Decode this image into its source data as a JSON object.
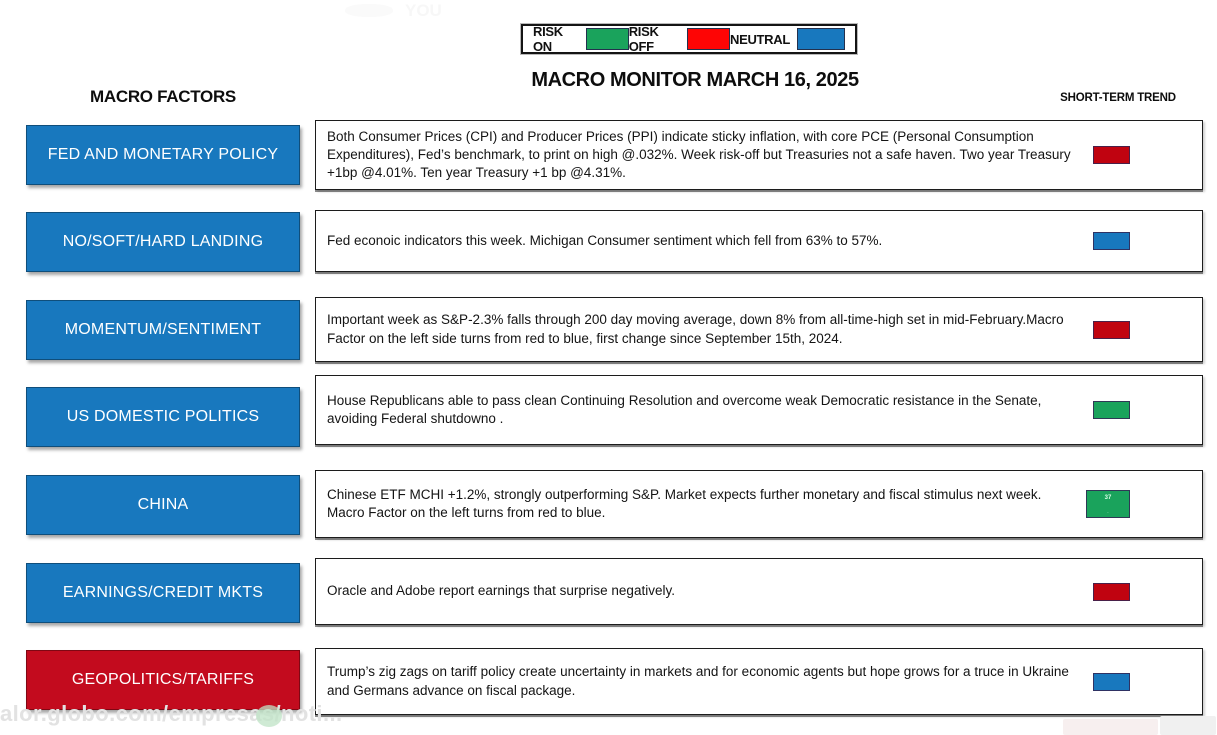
{
  "header": {
    "title": "MACRO MONITOR MARCH 16, 2025",
    "left_column": "MACRO FACTORS",
    "right_column": "SHORT-TERM TREND"
  },
  "legend": {
    "items": [
      {
        "label": "RISK ON",
        "color": "#1aa35c"
      },
      {
        "label": "RISK OFF",
        "color": "#fe0505"
      },
      {
        "label": "NEUTRAL",
        "color": "#1878be"
      }
    ]
  },
  "palette": {
    "factor_blue": "#1878be",
    "factor_red": "#c30b1e",
    "trend_green": "#1aa35c",
    "trend_red": "#c00310",
    "trend_blue": "#1878be"
  },
  "rows": [
    {
      "factor": "FED AND MONETARY POLICY",
      "factor_color": "#1878be",
      "description": "Both Consumer Prices (CPI) and Producer Prices (PPI) indicate sticky inflation, with core PCE (Personal Consumption Expenditures), Fed’s benchmark, to print on high @.032%. Week risk-off but Treasuries not a safe haven. Two year Treasury +1bp @4.01%. Ten year Treasury +1 bp @4.31%.",
      "trend": "risk-off",
      "trend_color": "#c00310"
    },
    {
      "factor": "NO/SOFT/HARD LANDING",
      "factor_color": "#1878be",
      "description": "Fed econoic indicators this week. Michigan Consumer sentiment which fell from 63% to 57%.",
      "trend": "neutral",
      "trend_color": "#1878be"
    },
    {
      "factor": "MOMENTUM/SENTIMENT",
      "factor_color": "#1878be",
      "description": "Important week as S&P-2.3% falls through 200 day moving average, down 8% from all-time-high set in mid-February.Macro Factor on the left side turns from red to blue, first change since September 15th, 2024.",
      "trend": "risk-off",
      "trend_color": "#c00310"
    },
    {
      "factor": "US  DOMESTIC POLITICS",
      "factor_color": "#1878be",
      "description": "House Republicans able to pass clean Continuing Resolution  and overcome weak Democratic resistance in the Senate, avoiding Federal shutdowno .",
      "trend": "risk-on",
      "trend_color": "#1aa35c"
    },
    {
      "factor": "CHINA",
      "factor_color": "#1878be",
      "description": "Chinese ETF MCHI +1.2%, strongly outperforming S&P. Market expects further monetary and fiscal stimulus next week. Macro Factor on the left turns from red to blue.",
      "trend": "risk-on",
      "trend_color": "#1aa35c",
      "trend_overlay_top": "37",
      "trend_overlay_bottom": "."
    },
    {
      "factor": "EARNINGS/CREDIT MKTS",
      "factor_color": "#1878be",
      "description": "Oracle and Adobe report earnings that surprise negatively.",
      "trend": "risk-off",
      "trend_color": "#c00310"
    },
    {
      "factor": "GEOPOLITICS/TARIFFS",
      "factor_color": "#c30b1e",
      "description": "Trump’s zig zags on tariff policy create uncertainty in markets and for economic agents but hope grows for a truce in Ukraine and Germans advance on fiscal package.",
      "trend": "neutral",
      "trend_color": "#1878be"
    }
  ],
  "watermarks": {
    "bottom_left_url": "alor.globo.com/empresas/noti...",
    "top_faint_text": "YOU"
  }
}
